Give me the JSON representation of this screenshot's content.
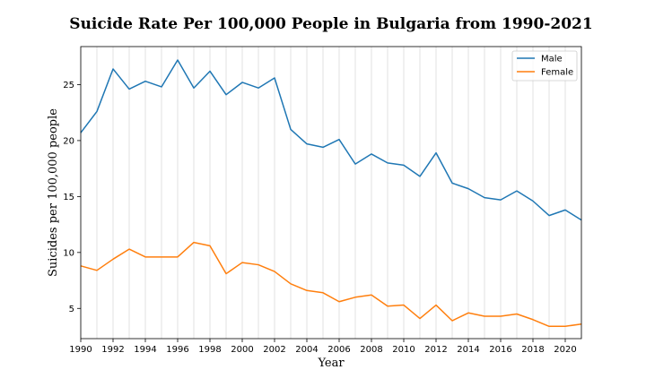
{
  "chart_data": {
    "type": "line",
    "title": "Suicide Rate Per 100,000 People in Bulgaria from 1990-2021",
    "xlabel": "Year",
    "ylabel": "Suicides per 100,000 people",
    "xlim": [
      1990,
      2021
    ],
    "ylim": [
      2.3,
      28.4
    ],
    "xticks": [
      1990,
      1992,
      1994,
      1996,
      1998,
      2000,
      2002,
      2004,
      2006,
      2008,
      2010,
      2012,
      2014,
      2016,
      2018,
      2020
    ],
    "yticks": [
      5,
      10,
      15,
      20,
      25
    ],
    "grid": "vertical",
    "legend_position": "top-right",
    "x": [
      1990,
      1991,
      1992,
      1993,
      1994,
      1995,
      1996,
      1997,
      1998,
      1999,
      2000,
      2001,
      2002,
      2003,
      2004,
      2005,
      2006,
      2007,
      2008,
      2009,
      2010,
      2011,
      2012,
      2013,
      2014,
      2015,
      2016,
      2017,
      2018,
      2019,
      2020,
      2021
    ],
    "series": [
      {
        "name": "Male",
        "color": "#1f77b4",
        "values": [
          20.7,
          22.6,
          26.4,
          24.6,
          25.3,
          24.8,
          27.2,
          24.7,
          26.2,
          24.1,
          25.2,
          24.7,
          25.6,
          21.0,
          19.7,
          19.4,
          20.1,
          17.9,
          18.8,
          18.0,
          17.8,
          16.8,
          18.9,
          16.2,
          15.7,
          14.9,
          14.7,
          15.5,
          14.6,
          13.3,
          13.8,
          12.9
        ]
      },
      {
        "name": "Female",
        "color": "#ff7f0e",
        "values": [
          8.8,
          8.4,
          9.4,
          10.3,
          9.6,
          9.6,
          9.6,
          10.9,
          10.6,
          8.1,
          9.1,
          8.9,
          8.3,
          7.2,
          6.6,
          6.4,
          5.6,
          6.0,
          6.2,
          5.2,
          5.3,
          4.1,
          5.3,
          3.9,
          4.6,
          4.3,
          4.3,
          4.5,
          4.0,
          3.4,
          3.4,
          3.6
        ]
      }
    ]
  }
}
